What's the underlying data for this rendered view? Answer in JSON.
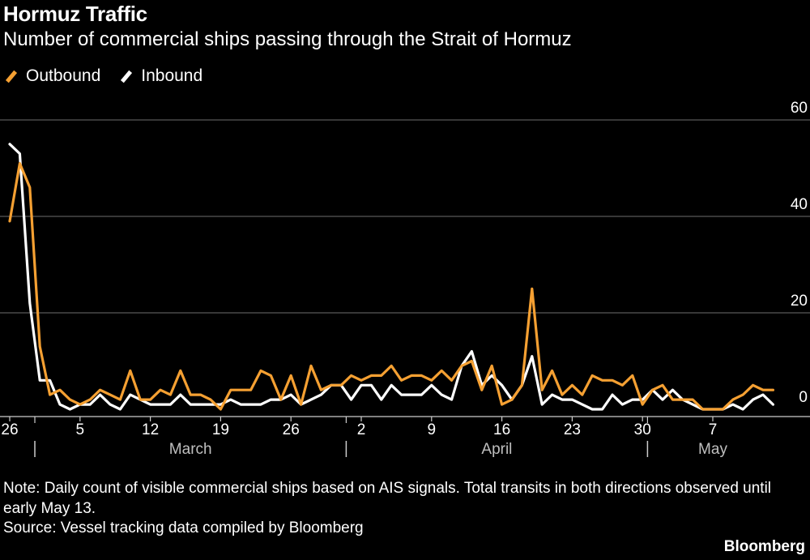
{
  "chart_data": {
    "type": "line",
    "title": "Hormuz Traffic",
    "subtitle": "Number of commercial ships passing through the Strait of Hormuz",
    "x": [
      "Feb 26",
      "Feb 27",
      "Feb 28",
      "Mar 1",
      "Mar 2",
      "Mar 3",
      "Mar 4",
      "Mar 5",
      "Mar 6",
      "Mar 7",
      "Mar 8",
      "Mar 9",
      "Mar 10",
      "Mar 11",
      "Mar 12",
      "Mar 13",
      "Mar 14",
      "Mar 15",
      "Mar 16",
      "Mar 17",
      "Mar 18",
      "Mar 19",
      "Mar 20",
      "Mar 21",
      "Mar 22",
      "Mar 23",
      "Mar 24",
      "Mar 25",
      "Mar 26",
      "Mar 27",
      "Mar 28",
      "Mar 29",
      "Mar 30",
      "Mar 31",
      "Apr 1",
      "Apr 2",
      "Apr 3",
      "Apr 4",
      "Apr 5",
      "Apr 6",
      "Apr 7",
      "Apr 8",
      "Apr 9",
      "Apr 10",
      "Apr 11",
      "Apr 12",
      "Apr 13",
      "Apr 14",
      "Apr 15",
      "Apr 16",
      "Apr 17",
      "Apr 18",
      "Apr 19",
      "Apr 20",
      "Apr 21",
      "Apr 22",
      "Apr 23",
      "Apr 24",
      "Apr 25",
      "Apr 26",
      "Apr 27",
      "Apr 28",
      "Apr 29",
      "Apr 30",
      "May 1",
      "May 2",
      "May 3",
      "May 4",
      "May 5",
      "May 6",
      "May 7",
      "May 8",
      "May 9",
      "May 10",
      "May 11",
      "May 12",
      "May 13"
    ],
    "series": [
      {
        "name": "Outbound",
        "color": "#f5a032",
        "values": [
          39,
          51,
          46,
          13,
          3,
          4,
          2,
          1,
          2,
          4,
          3,
          2,
          8,
          2,
          2,
          4,
          3,
          8,
          3,
          3,
          2,
          0,
          4,
          4,
          4,
          8,
          7,
          2,
          7,
          1,
          9,
          4,
          5,
          5,
          7,
          6,
          7,
          7,
          9,
          6,
          7,
          7,
          6,
          8,
          6,
          9,
          10,
          4,
          9,
          1,
          2,
          5,
          25,
          4,
          8,
          3,
          5,
          3,
          7,
          6,
          6,
          5,
          7,
          1,
          4,
          5,
          2,
          2,
          2,
          0,
          0,
          0,
          2,
          3,
          5,
          4,
          4
        ]
      },
      {
        "name": "Inbound",
        "color": "#ffffff",
        "values": [
          55,
          53,
          22,
          6,
          6,
          1,
          0,
          1,
          1,
          3,
          1,
          0,
          3,
          2,
          1,
          1,
          1,
          3,
          1,
          1,
          1,
          1,
          2,
          1,
          1,
          1,
          2,
          2,
          3,
          1,
          2,
          3,
          5,
          5,
          2,
          5,
          5,
          2,
          5,
          3,
          3,
          3,
          5,
          3,
          2,
          9,
          12,
          5,
          7,
          5,
          2,
          5,
          11,
          1,
          3,
          2,
          2,
          1,
          0,
          0,
          3,
          1,
          2,
          2,
          4,
          2,
          4,
          2,
          1,
          0,
          0,
          0,
          1,
          0,
          2,
          3,
          1
        ]
      }
    ],
    "ylim": [
      0,
      60
    ],
    "yticks": [
      0,
      20,
      40,
      60
    ],
    "xticks": [
      {
        "label": "26",
        "date": "Feb 26"
      },
      {
        "label": "5",
        "date": "Mar 5"
      },
      {
        "label": "12",
        "date": "Mar 12"
      },
      {
        "label": "19",
        "date": "Mar 19"
      },
      {
        "label": "26",
        "date": "Mar 26"
      },
      {
        "label": "2",
        "date": "Apr 2"
      },
      {
        "label": "9",
        "date": "Apr 9"
      },
      {
        "label": "16",
        "date": "Apr 16"
      },
      {
        "label": "23",
        "date": "Apr 23"
      },
      {
        "label": "30",
        "date": "Apr 30"
      },
      {
        "label": "7",
        "date": "May 7"
      }
    ],
    "months": [
      {
        "label": "March",
        "start": "Mar 1",
        "end": "Mar 31"
      },
      {
        "label": "April",
        "start": "Apr 1",
        "end": "Apr 30"
      },
      {
        "label": "May",
        "start": "May 1",
        "end": "May 13"
      }
    ],
    "grid": true,
    "legend_position": "top-left",
    "xlabel": "",
    "ylabel": ""
  },
  "note": "Note: Daily count of visible commercial ships based on AIS signals. Total transits in both directions observed until early May 13.",
  "source": "Source: Vessel tracking data compiled by Bloomberg",
  "brand": "Bloomberg"
}
